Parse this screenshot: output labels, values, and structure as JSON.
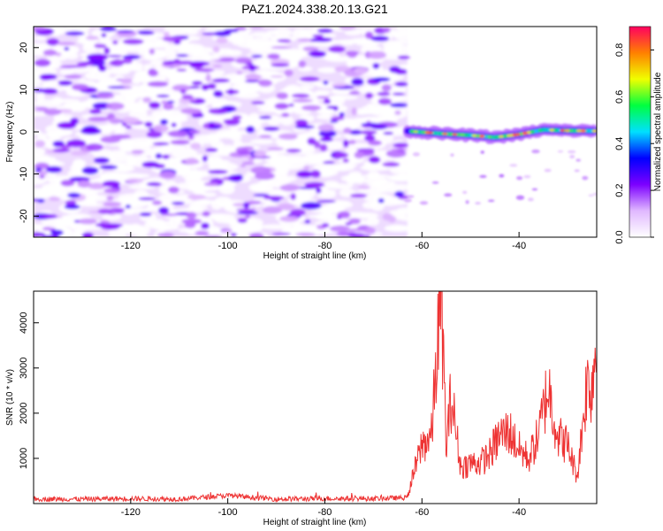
{
  "figure": {
    "title": "PAZ1.2024.338.20.13.G21"
  },
  "chart_data": [
    {
      "type": "heatmap",
      "xlabel": "Height of straight line (km)",
      "ylabel": "Frequency (Hz)",
      "xlim": [
        -140,
        -24
      ],
      "ylim": [
        -25,
        25
      ],
      "xticks": [
        -120,
        -100,
        -80,
        -60,
        -40
      ],
      "yticks": [
        -20,
        -10,
        0,
        10,
        20
      ],
      "noise_region_x": [
        -140,
        -63
      ],
      "signal_region_x": [
        -63,
        -24
      ],
      "signal_frequency_hz": [
        [
          -63,
          0.2
        ],
        [
          -55,
          -0.5
        ],
        [
          -50,
          -0.8
        ],
        [
          -45,
          -1.3
        ],
        [
          -40,
          -0.6
        ],
        [
          -35,
          0.5
        ],
        [
          -30,
          0.3
        ],
        [
          -24,
          0.2
        ]
      ],
      "colorbar": {
        "label": "Normalized spectral amplitude",
        "range": [
          0,
          0.9
        ],
        "ticks": [
          0.0,
          0.2,
          0.4,
          0.6,
          0.8
        ],
        "colors": [
          "#ffffff",
          "#e0b8ff",
          "#7c00ff",
          "#0000ff",
          "#00e0ff",
          "#00ff40",
          "#f0ff00",
          "#ff8000",
          "#ff0060"
        ]
      }
    },
    {
      "type": "line",
      "xlabel": "Height of straight line (km)",
      "ylabel": "SNR (10 * v/v)",
      "xlim": [
        -140,
        -24
      ],
      "ylim": [
        0,
        4700
      ],
      "xticks": [
        -120,
        -100,
        -80,
        -60,
        -40
      ],
      "yticks": [
        1000,
        2000,
        3000,
        4000
      ],
      "color": "#ee3333",
      "series": [
        {
          "x": [
            -140,
            -130,
            -120,
            -110,
            -100,
            -90,
            -80,
            -70,
            -63,
            -62,
            -60,
            -58,
            -57,
            -56,
            -55,
            -54,
            -52,
            -50,
            -48,
            -46,
            -44,
            -42,
            -40,
            -38,
            -36,
            -34,
            -32,
            -30,
            -28,
            -26,
            -25,
            -24
          ],
          "y": [
            100,
            100,
            110,
            100,
            180,
            100,
            110,
            110,
            130,
            550,
            1300,
            1500,
            3200,
            4700,
            1200,
            2400,
            800,
            900,
            900,
            1100,
            1500,
            1600,
            1200,
            1000,
            1500,
            2600,
            1500,
            1300,
            600,
            2700,
            2600,
            3700
          ]
        }
      ]
    }
  ]
}
